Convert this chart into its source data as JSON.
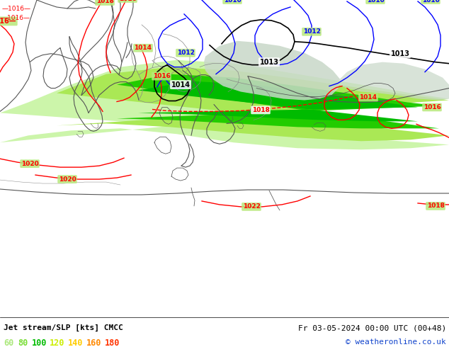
{
  "title_left": "Jet stream/SLP [kts] CMCC",
  "title_right": "Fr 03-05-2024 00:00 UTC (00+48)",
  "copyright": "© weatheronline.co.uk",
  "legend_values": [
    "60",
    "80",
    "100",
    "120",
    "140",
    "160",
    "180"
  ],
  "legend_colors": [
    "#aae87a",
    "#77dd33",
    "#00bb00",
    "#ccee00",
    "#ffcc00",
    "#ff8800",
    "#ff3300"
  ],
  "bg_color": "#b8e87a",
  "figsize": [
    6.34,
    4.9
  ],
  "dpi": 100,
  "map_bg": "#b8e87a",
  "jet_band1_color": "#ccf5aa",
  "jet_band2_color": "#99ee55",
  "jet_band3_color": "#33cc00",
  "jet_band4_color": "#00aa00",
  "gray_shade": "#ccddcc",
  "coast_color": "#555555",
  "coast_lw": 0.8,
  "border_color": "#888888",
  "border_lw": 0.5
}
